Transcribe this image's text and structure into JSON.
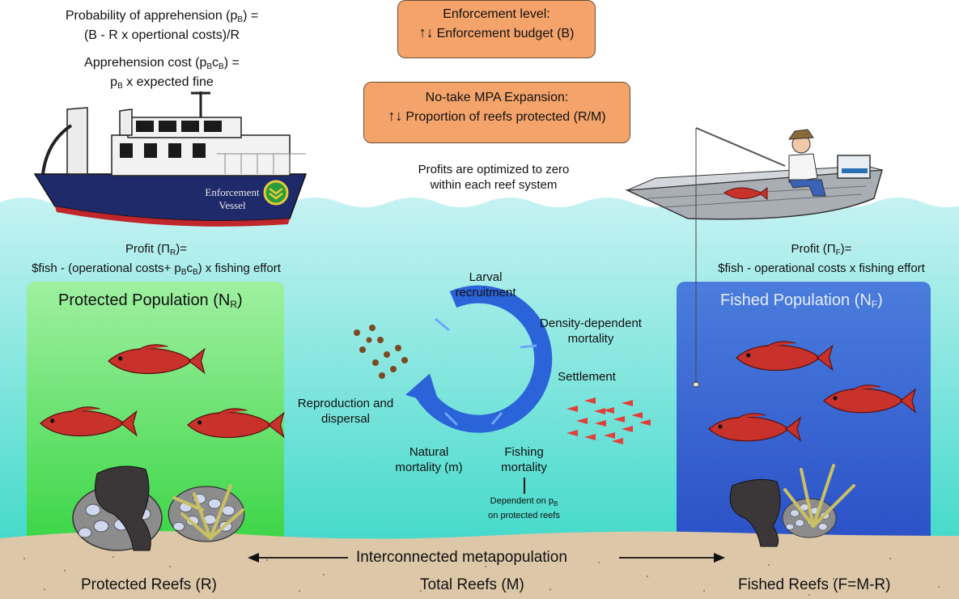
{
  "apprehension": {
    "prob_line1": "Probability of apprehension (p",
    "prob_sub": "B",
    "prob_line1_end": ") =",
    "prob_line2": "(B - R x opertional costs)/R",
    "cost_line1": "Apprehension cost (p",
    "cost_sub1": "B",
    "cost_mid": "c",
    "cost_sub2": "B",
    "cost_line1_end": ") =",
    "cost_line2_pre": "p",
    "cost_line2_sub": "B",
    "cost_line2_post": " x expected fine"
  },
  "boxes": {
    "enforcement_title": "Enforcement level:",
    "enforcement_arrows": "↑↓",
    "enforcement_body": "Enforcement budget (B)",
    "mpa_title": "No-take MPA Expansion:",
    "mpa_arrows": "↑↓",
    "mpa_body": "Proportion of reefs protected (R/M)"
  },
  "profits_note": {
    "line1": "Profits are optimized to zero",
    "line2": "within each reef system"
  },
  "vessel": {
    "line1": "Enforcement",
    "line2": "Vessel"
  },
  "profit_left": {
    "line1_pre": "Profit (Π",
    "line1_sub": "R",
    "line1_post": ")=",
    "line2_pre": "$fish - (operational costs+ p",
    "line2_sub1": "B",
    "line2_mid": "c",
    "line2_sub2": "B",
    "line2_post": ") x fishing effort"
  },
  "profit_right": {
    "line1_pre": "Profit (Π",
    "line1_sub": "F",
    "line1_post": ")=",
    "line2": "$fish - operational costs x fishing effort"
  },
  "protected_panel": {
    "title_pre": "Protected Population (N",
    "title_sub": "R",
    "title_post": ")"
  },
  "fished_panel": {
    "title_pre": "Fished Population (N",
    "title_sub": "F",
    "title_post": ")"
  },
  "cycle": {
    "larval_line1": "Larval",
    "larval_line2": "recruitment",
    "density_line1": "Density-dependent",
    "density_line2": "mortality",
    "settlement": "Settlement",
    "repro_line1": "Reproduction and",
    "repro_line2": "dispersal",
    "natural_line1": "Natural",
    "natural_line2": "mortality (m)",
    "fishing_line1": "Fishing",
    "fishing_line2": "mortality",
    "dependent_line1_pre": "Dependent on p",
    "dependent_line1_sub": "B",
    "dependent_line2": "on protected reefs"
  },
  "bottom": {
    "interconnected": "Interconnected metapopulation",
    "protected_reefs": "Protected Reefs (R)",
    "total_reefs": "Total Reefs (M)",
    "fished_reefs": "Fished Reefs (F=M-R)"
  },
  "colors": {
    "water_top": "#b7eef0",
    "water_bottom": "#2dd6c6",
    "protected_top": "#a9f0a8",
    "protected_bottom": "#3fd64a",
    "fished_top": "#4f7fdc",
    "fished_bottom": "#2b53c8",
    "sand": "#dcc7a8",
    "box_fill": "#f4a36a",
    "cycle_blue": "#2b63d9",
    "fish_red": "#c8322b"
  }
}
